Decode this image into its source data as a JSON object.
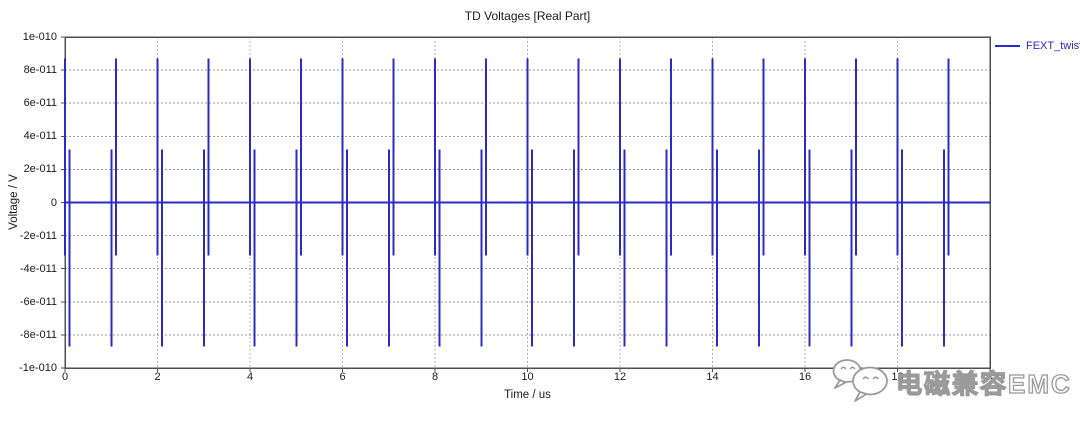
{
  "colors": {
    "series_blue": "#2B2BC8",
    "grid_gray": "#999999",
    "border_gray": "#4f4f4f",
    "label_dark": "#1a1a1a",
    "watermark_gray": "#9a9a9a",
    "background": "#ffffff"
  },
  "chart_data": {
    "type": "line",
    "title": "TD Voltages [Real Part]",
    "xlabel": "Time / us",
    "ylabel": "Voltage / V",
    "xlim": [
      0,
      20
    ],
    "ylim": [
      -1e-10,
      1e-10
    ],
    "grid": "dotted",
    "x_ticks": [
      {
        "value": 0,
        "label": "0"
      },
      {
        "value": 2,
        "label": "2"
      },
      {
        "value": 4,
        "label": "4"
      },
      {
        "value": 6,
        "label": "6"
      },
      {
        "value": 8,
        "label": "8"
      },
      {
        "value": 10,
        "label": "10"
      },
      {
        "value": 12,
        "label": "12"
      },
      {
        "value": 14,
        "label": "14"
      },
      {
        "value": 16,
        "label": "16"
      },
      {
        "value": 18,
        "label": "18"
      },
      {
        "value": 20,
        "label": "20"
      }
    ],
    "y_ticks": [
      {
        "value": 1e-10,
        "label": "1e-010"
      },
      {
        "value": 8e-11,
        "label": "8e-011"
      },
      {
        "value": 6e-11,
        "label": "6e-011"
      },
      {
        "value": 4e-11,
        "label": "4e-011"
      },
      {
        "value": 2e-11,
        "label": "2e-011"
      },
      {
        "value": 0,
        "label": "0"
      },
      {
        "value": -2e-11,
        "label": "-2e-011"
      },
      {
        "value": -4e-11,
        "label": "-4e-011"
      },
      {
        "value": -6e-11,
        "label": "-6e-011"
      },
      {
        "value": -8e-11,
        "label": "-8e-011"
      },
      {
        "value": -1e-10,
        "label": "-1e-010"
      }
    ],
    "legend": {
      "position": "top-right",
      "entries": [
        {
          "label": "FEXT_twist",
          "color": "#2B2BC8"
        }
      ]
    },
    "series": [
      {
        "name": "FEXT_twist",
        "color": "#2B2BC8",
        "baseline_value": 0,
        "pulse_pairs": {
          "times_us": [
            0,
            1,
            2,
            3,
            4,
            5,
            6,
            7,
            8,
            9,
            10,
            11,
            12,
            13,
            14,
            15,
            16,
            17,
            18,
            19
          ],
          "tall_peak": 8.7e-11,
          "short_peak": 3.2e-11,
          "pair_separation_us": 0.1,
          "pattern": "even times: spike(+8.7e-11 to -3.2e-11) then spike(+3.2e-11 to -8.7e-11); odd times: order reversed"
        }
      }
    ]
  },
  "watermark": {
    "icon": "wechat-icon",
    "text": "电磁兼容EMC"
  }
}
